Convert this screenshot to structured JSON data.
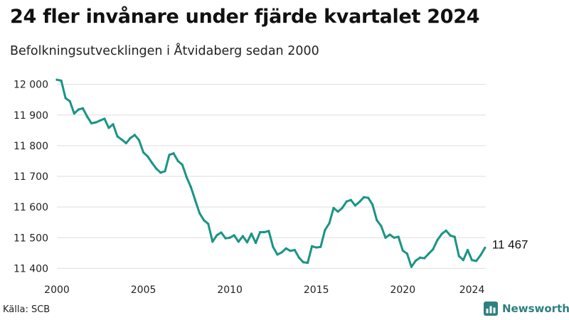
{
  "title": "24 fler invånare under fjärde kvartalet 2024",
  "subtitle": "Befolkningsutvecklingen i Åtvidaberg sedan 2000",
  "source": "Källa: SCB",
  "brand": {
    "name": "Newsworthy",
    "icon": "newsworthy-chart-logo-icon",
    "color": "#2e7f80"
  },
  "colors": {
    "line": "#1a9485",
    "grid": "#dddddd",
    "text": "#222222"
  },
  "chart_data": {
    "type": "line",
    "x_unit": "year (quarterly observations)",
    "xlim": [
      2000,
      2024.8
    ],
    "ylim": [
      11380,
      12020
    ],
    "grid": true,
    "x_ticks": [
      {
        "value": 2000,
        "label": "2000"
      },
      {
        "value": 2005,
        "label": "2005"
      },
      {
        "value": 2010,
        "label": "2010"
      },
      {
        "value": 2015,
        "label": "2015"
      },
      {
        "value": 2020,
        "label": "2020"
      },
      {
        "value": 2024,
        "label": "2024"
      }
    ],
    "y_ticks": [
      {
        "value": 11400,
        "label": "11 400"
      },
      {
        "value": 11500,
        "label": "11 500"
      },
      {
        "value": 11600,
        "label": "11 600"
      },
      {
        "value": 11700,
        "label": "11 700"
      },
      {
        "value": 11800,
        "label": "11 800"
      },
      {
        "value": 11900,
        "label": "11 900"
      },
      {
        "value": 12000,
        "label": "12 000"
      }
    ],
    "end_label": "11 467",
    "series": [
      {
        "color": "#1a9485",
        "points": [
          [
            2000.0,
            12015
          ],
          [
            2000.25,
            12012
          ],
          [
            2000.5,
            11955
          ],
          [
            2000.75,
            11945
          ],
          [
            2001.0,
            11905
          ],
          [
            2001.25,
            11918
          ],
          [
            2001.5,
            11922
          ],
          [
            2001.75,
            11895
          ],
          [
            2002.0,
            11873
          ],
          [
            2002.25,
            11876
          ],
          [
            2002.5,
            11882
          ],
          [
            2002.75,
            11888
          ],
          [
            2003.0,
            11858
          ],
          [
            2003.25,
            11870
          ],
          [
            2003.5,
            11830
          ],
          [
            2003.75,
            11820
          ],
          [
            2004.0,
            11808
          ],
          [
            2004.25,
            11825
          ],
          [
            2004.5,
            11835
          ],
          [
            2004.75,
            11818
          ],
          [
            2005.0,
            11778
          ],
          [
            2005.25,
            11765
          ],
          [
            2005.5,
            11744
          ],
          [
            2005.75,
            11725
          ],
          [
            2006.0,
            11712
          ],
          [
            2006.25,
            11717
          ],
          [
            2006.5,
            11770
          ],
          [
            2006.75,
            11775
          ],
          [
            2007.0,
            11750
          ],
          [
            2007.25,
            11738
          ],
          [
            2007.5,
            11697
          ],
          [
            2007.75,
            11665
          ],
          [
            2008.0,
            11622
          ],
          [
            2008.25,
            11580
          ],
          [
            2008.5,
            11557
          ],
          [
            2008.75,
            11545
          ],
          [
            2009.0,
            11487
          ],
          [
            2009.25,
            11508
          ],
          [
            2009.5,
            11517
          ],
          [
            2009.75,
            11498
          ],
          [
            2010.0,
            11500
          ],
          [
            2010.25,
            11508
          ],
          [
            2010.5,
            11487
          ],
          [
            2010.75,
            11505
          ],
          [
            2011.0,
            11485
          ],
          [
            2011.25,
            11513
          ],
          [
            2011.5,
            11483
          ],
          [
            2011.75,
            11518
          ],
          [
            2012.0,
            11518
          ],
          [
            2012.25,
            11522
          ],
          [
            2012.5,
            11470
          ],
          [
            2012.75,
            11445
          ],
          [
            2013.0,
            11452
          ],
          [
            2013.25,
            11465
          ],
          [
            2013.5,
            11457
          ],
          [
            2013.75,
            11460
          ],
          [
            2014.0,
            11435
          ],
          [
            2014.25,
            11420
          ],
          [
            2014.5,
            11418
          ],
          [
            2014.75,
            11472
          ],
          [
            2015.0,
            11468
          ],
          [
            2015.25,
            11470
          ],
          [
            2015.5,
            11525
          ],
          [
            2015.75,
            11547
          ],
          [
            2016.0,
            11597
          ],
          [
            2016.25,
            11585
          ],
          [
            2016.5,
            11597
          ],
          [
            2016.75,
            11618
          ],
          [
            2017.0,
            11623
          ],
          [
            2017.25,
            11605
          ],
          [
            2017.5,
            11617
          ],
          [
            2017.75,
            11632
          ],
          [
            2018.0,
            11630
          ],
          [
            2018.25,
            11608
          ],
          [
            2018.5,
            11557
          ],
          [
            2018.75,
            11538
          ],
          [
            2019.0,
            11500
          ],
          [
            2019.25,
            11510
          ],
          [
            2019.5,
            11500
          ],
          [
            2019.75,
            11503
          ],
          [
            2020.0,
            11458
          ],
          [
            2020.25,
            11448
          ],
          [
            2020.5,
            11405
          ],
          [
            2020.75,
            11425
          ],
          [
            2021.0,
            11435
          ],
          [
            2021.25,
            11433
          ],
          [
            2021.5,
            11448
          ],
          [
            2021.75,
            11462
          ],
          [
            2022.0,
            11492
          ],
          [
            2022.25,
            11512
          ],
          [
            2022.5,
            11523
          ],
          [
            2022.75,
            11507
          ],
          [
            2023.0,
            11503
          ],
          [
            2023.25,
            11440
          ],
          [
            2023.5,
            11427
          ],
          [
            2023.75,
            11460
          ],
          [
            2024.0,
            11427
          ],
          [
            2024.25,
            11424
          ],
          [
            2024.5,
            11443
          ],
          [
            2024.75,
            11467
          ]
        ]
      }
    ]
  }
}
